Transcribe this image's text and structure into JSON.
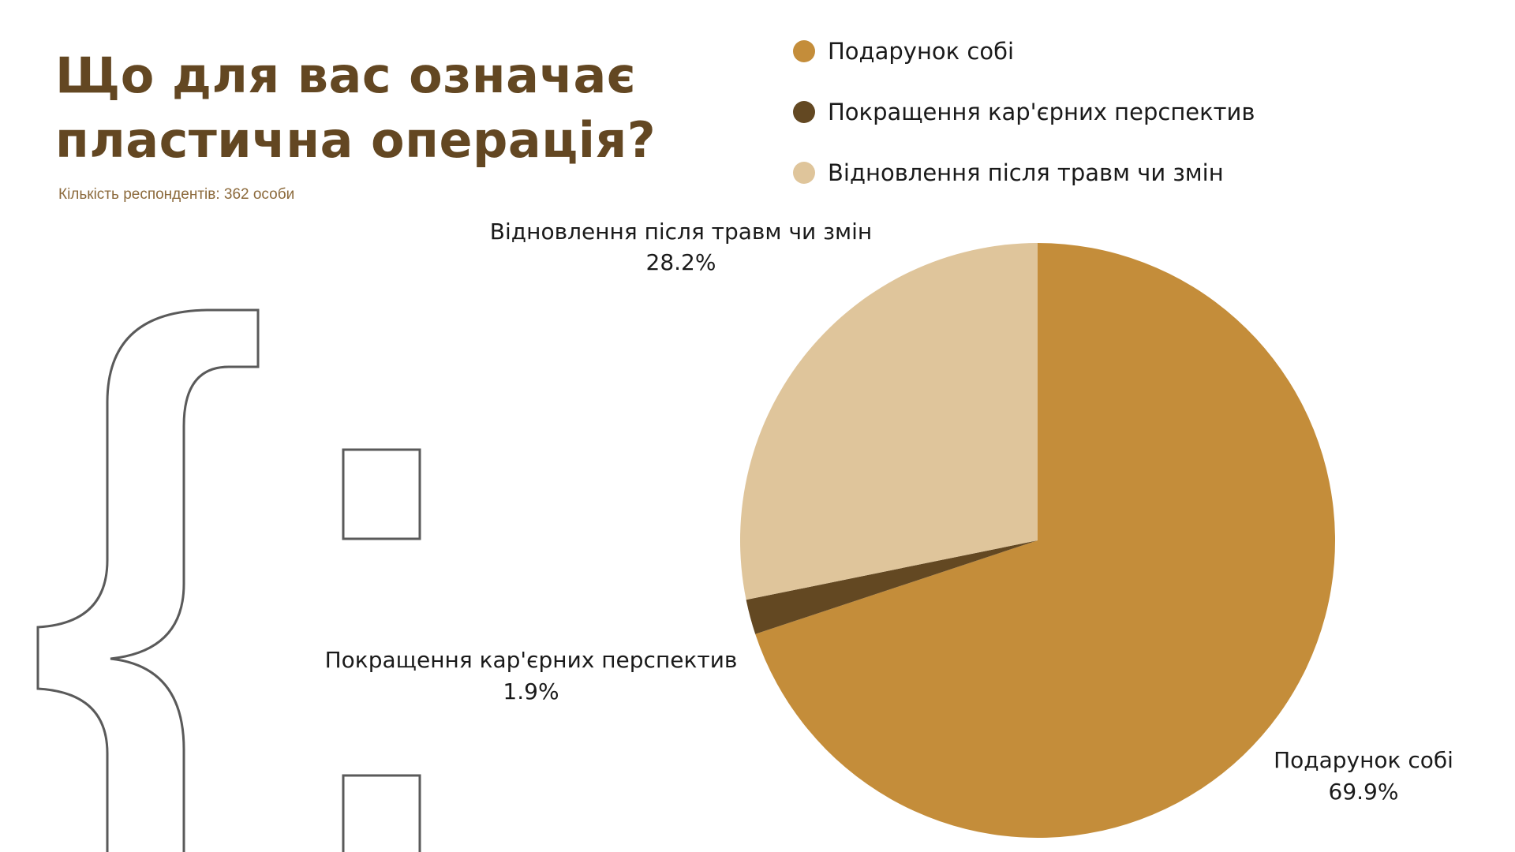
{
  "header": {
    "title_line1": "Що для вас означає",
    "title_line2": "пластична операція?",
    "subtitle": "Кількість респондентів: 362 особи"
  },
  "colors": {
    "title": "#634722",
    "subtitle": "#8c6a3c",
    "decor_stroke": "#5a5a5a"
  },
  "chart_data": {
    "type": "pie",
    "legend_position": "top-right",
    "slices": [
      {
        "label": "Подарунок собі",
        "value": 69.9,
        "value_label": "69.9%",
        "color": "#c48d3a"
      },
      {
        "label": "Покращення кар'єрних перспектив",
        "value": 1.9,
        "value_label": "1.9%",
        "color": "#634822"
      },
      {
        "label": "Відновлення після травм чи змін",
        "value": 28.2,
        "value_label": "28.2%",
        "color": "#dfc59b"
      }
    ]
  }
}
